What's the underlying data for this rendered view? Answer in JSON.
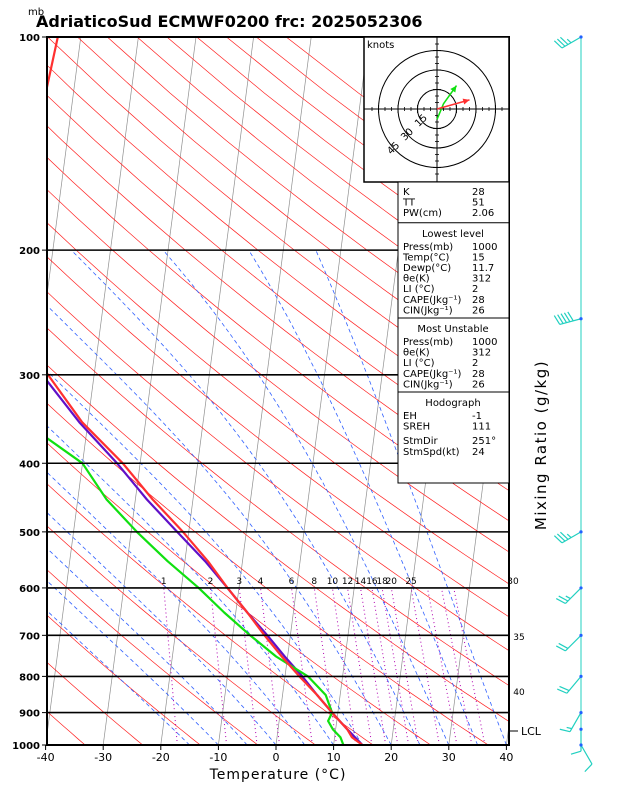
{
  "header": {
    "unit_mb": "mb",
    "title": "AdriaticoSud ECMWF0200 frc: 2025052306"
  },
  "axes": {
    "xlabel": "Temperature (°C)",
    "mixing_label": "Mixing Ratio (g/kg)",
    "lcl_label": "LCL",
    "pressure_ticks": [
      "100",
      "200",
      "300",
      "400",
      "500",
      "600",
      "700",
      "800",
      "900",
      "1000"
    ],
    "temp_ticks": [
      "-40",
      "-30",
      "-20",
      "-10",
      "0",
      "10",
      "20",
      "30",
      "40"
    ],
    "mixing_ticks": [
      "1",
      "2",
      "3",
      "4",
      "6",
      "8",
      "10",
      "12",
      "14",
      "16",
      "18",
      "20",
      "25",
      "30",
      "35",
      "40"
    ]
  },
  "hodograph": {
    "units": "knots",
    "ring_labels": [
      "15",
      "30",
      "45"
    ]
  },
  "indices": {
    "top": [
      {
        "label": "K",
        "value": "28"
      },
      {
        "label": "TT",
        "value": "51"
      },
      {
        "label": "PW(cm)",
        "value": "2.06"
      }
    ],
    "lowest_title": "Lowest level",
    "lowest": [
      {
        "label": "Press(mb)",
        "value": "1000"
      },
      {
        "label": "Temp(°C)",
        "value": "15"
      },
      {
        "label": "Dewp(°C)",
        "value": "11.7"
      },
      {
        "label": "θe(K)",
        "value": "312"
      },
      {
        "label": "LI (°C)",
        "value": "2"
      },
      {
        "label": "CAPE(Jkg⁻¹)",
        "value": "28"
      },
      {
        "label": "CIN(Jkg⁻¹)",
        "value": "26"
      }
    ],
    "unstable_title": "Most Unstable",
    "unstable": [
      {
        "label": "Press(mb)",
        "value": "1000"
      },
      {
        "label": "θe(K)",
        "value": "312"
      },
      {
        "label": "LI (°C)",
        "value": "2"
      },
      {
        "label": "CAPE(Jkg⁻¹)",
        "value": "28"
      },
      {
        "label": "CIN(Jkg⁻¹)",
        "value": "26"
      }
    ],
    "hodo_title": "Hodograph",
    "hodo": [
      {
        "label": "EH",
        "value": "-1"
      },
      {
        "label": "SREH",
        "value": "111"
      }
    ],
    "storm": [
      {
        "label": "StmDir",
        "value": "251°"
      },
      {
        "label": "StmSpd(kt)",
        "value": "24"
      }
    ]
  },
  "chart_data": {
    "type": "skew-t",
    "title": "AdriaticoSud ECMWF0200 frc: 2025052306",
    "xlabel": "Temperature (°C)",
    "ylabel": "mb",
    "xlim": [
      -40,
      40
    ],
    "ylim": [
      1000,
      100
    ],
    "pressure_levels": [
      1000,
      900,
      800,
      700,
      600,
      500,
      400,
      300,
      200,
      100
    ],
    "temperature": [
      [
        1000,
        15
      ],
      [
        975,
        13
      ],
      [
        950,
        12
      ],
      [
        925,
        10.5
      ],
      [
        900,
        9
      ],
      [
        850,
        6
      ],
      [
        800,
        2.5
      ],
      [
        750,
        -1
      ],
      [
        700,
        -4.5
      ],
      [
        650,
        -8
      ],
      [
        600,
        -12
      ],
      [
        550,
        -16
      ],
      [
        500,
        -21
      ],
      [
        450,
        -27
      ],
      [
        400,
        -33
      ],
      [
        350,
        -41
      ],
      [
        300,
        -48
      ],
      [
        250,
        -56
      ],
      [
        200,
        -58
      ],
      [
        175,
        -57
      ],
      [
        150,
        -56
      ],
      [
        125,
        -55
      ],
      [
        100,
        -54
      ]
    ],
    "dewpoint": [
      [
        1000,
        11.7
      ],
      [
        975,
        11
      ],
      [
        950,
        9.5
      ],
      [
        925,
        8.5
      ],
      [
        900,
        9
      ],
      [
        850,
        7.5
      ],
      [
        800,
        4
      ],
      [
        750,
        -2
      ],
      [
        700,
        -7
      ],
      [
        650,
        -12
      ],
      [
        600,
        -17
      ],
      [
        550,
        -23
      ],
      [
        500,
        -29
      ],
      [
        450,
        -35
      ],
      [
        400,
        -40
      ],
      [
        350,
        -51
      ],
      [
        300,
        -61
      ],
      [
        250,
        -70
      ],
      [
        200,
        -73
      ],
      [
        150,
        -77
      ],
      [
        125,
        -79
      ],
      [
        100,
        -84
      ]
    ],
    "parcel": [
      [
        1000,
        15
      ],
      [
        950,
        12
      ],
      [
        900,
        9
      ],
      [
        850,
        6
      ],
      [
        800,
        3
      ],
      [
        750,
        -0.5
      ],
      [
        700,
        -4
      ],
      [
        650,
        -8
      ],
      [
        600,
        -12
      ],
      [
        550,
        -16.5
      ],
      [
        500,
        -22
      ],
      [
        450,
        -28
      ],
      [
        400,
        -34
      ],
      [
        350,
        -41.5
      ],
      [
        300,
        -49
      ],
      [
        250,
        -59
      ],
      [
        200,
        -69
      ],
      [
        150,
        -82
      ],
      [
        100,
        -99
      ]
    ],
    "lcl_pressure": 955,
    "hodograph": {
      "green": [
        [
          0,
          -8
        ],
        [
          5,
          4
        ],
        [
          15,
          18
        ]
      ],
      "red": [
        [
          0,
          0
        ],
        [
          25,
          7
        ]
      ]
    },
    "wind_barbs": [
      {
        "p": 100,
        "dir": 240,
        "spd": 35
      },
      {
        "p": 250,
        "dir": 255,
        "spd": 50
      },
      {
        "p": 500,
        "dir": 240,
        "spd": 35
      },
      {
        "p": 600,
        "dir": 225,
        "spd": 25
      },
      {
        "p": 700,
        "dir": 225,
        "spd": 20
      },
      {
        "p": 800,
        "dir": 220,
        "spd": 20
      },
      {
        "p": 900,
        "dir": 210,
        "spd": 15
      },
      {
        "p": 950,
        "dir": 180,
        "spd": 10
      },
      {
        "p": 1000,
        "dir": 150,
        "spd": 10
      }
    ],
    "colors": {
      "temperature": "#ff3030",
      "dewpoint": "#10e010",
      "parcel": "#6010c8",
      "isotherm": "#909090",
      "dry_adiabat": "#ff2020",
      "moist_adiabat": "#3060ff",
      "mixing_ratio": "#b000b0",
      "barb": "#20d0c0"
    }
  }
}
